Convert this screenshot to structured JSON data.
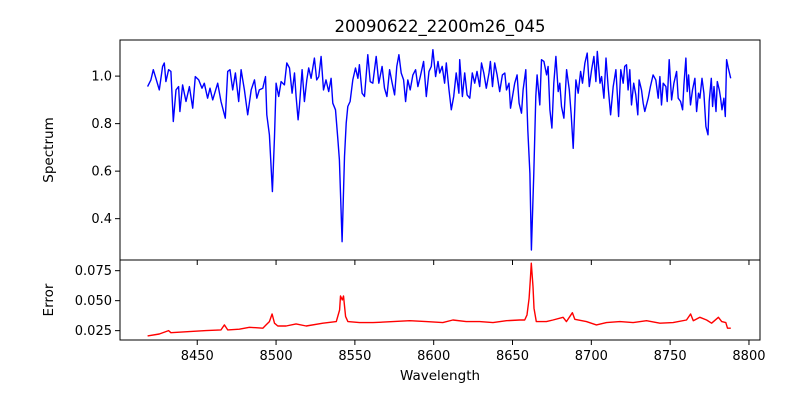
{
  "chart_data": [
    {
      "type": "line",
      "title": "20090622_2200m26_045",
      "xlabel": "",
      "ylabel": "Spectrum",
      "xlim": [
        8401,
        8807
      ],
      "ylim": [
        0.226,
        1.152
      ],
      "xticks": [
        8450,
        8500,
        8550,
        8600,
        8650,
        8700,
        8750,
        8800
      ],
      "yticks": [
        0.4,
        0.6,
        0.8,
        1.0
      ],
      "ytick_labels": [
        "0.4",
        "0.6",
        "0.8",
        "1.0"
      ],
      "grid": false,
      "series": [
        {
          "name": "Spectrum",
          "color": "#0000ff",
          "x": [
            8418.5,
            8420.6,
            8422.1,
            8423.8,
            8425.9,
            8428.0,
            8429.1,
            8430.1,
            8431.8,
            8433.3,
            8434.8,
            8436.5,
            8438.2,
            8439.0,
            8440.7,
            8442.9,
            8445.0,
            8447.1,
            8448.8,
            8450.9,
            8453.0,
            8454.5,
            8456.6,
            8458.1,
            8459.8,
            8463.0,
            8465.1,
            8467.8,
            8469.3,
            8470.8,
            8472.5,
            8474.2,
            8476.3,
            8477.8,
            8479.9,
            8482.0,
            8484.2,
            8486.3,
            8487.8,
            8489.4,
            8491.6,
            8493.3,
            8494.1,
            8495.8,
            8497.7,
            8499.0,
            8500.0,
            8501.7,
            8503.2,
            8505.3,
            8506.8,
            8508.5,
            8510.2,
            8511.7,
            8512.7,
            8514.0,
            8514.8,
            8516.5,
            8518.0,
            8519.5,
            8520.7,
            8522.2,
            8524.3,
            8525.8,
            8527.1,
            8528.6,
            8530.1,
            8531.7,
            8533.4,
            8534.9,
            8536.0,
            8537.7,
            8539.2,
            8540.2,
            8541.9,
            8543.4,
            8544.5,
            8545.5,
            8547.0,
            8548.7,
            8550.4,
            8551.9,
            8552.9,
            8554.6,
            8556.1,
            8558.2,
            8559.7,
            8561.4,
            8563.5,
            8565.2,
            8567.3,
            8568.8,
            8570.3,
            8572.0,
            8573.7,
            8575.2,
            8576.6,
            8577.9,
            8579.4,
            8580.9,
            8582.2,
            8583.6,
            8585.1,
            8586.8,
            8588.5,
            8590.0,
            8591.5,
            8593.6,
            8595.3,
            8597.0,
            8598.5,
            8599.5,
            8601.2,
            8602.7,
            8603.8,
            8605.4,
            8606.9,
            8608.0,
            8609.7,
            8611.2,
            8612.7,
            8614.3,
            8616.0,
            8616.5,
            8618.2,
            8619.7,
            8621.2,
            8622.9,
            8624.5,
            8626.0,
            8627.5,
            8629.2,
            8630.3,
            8631.8,
            8633.4,
            8635.1,
            8636.0,
            8637.3,
            8638.7,
            8640.2,
            8641.9,
            8643.6,
            8645.1,
            8646.2,
            8647.8,
            8648.7,
            8650.0,
            8651.4,
            8652.9,
            8654.2,
            8655.7,
            8656.7,
            8658.4,
            8659.7,
            8661.0,
            8662.0,
            8663.5,
            8664.8,
            8665.6,
            8667.3,
            8668.4,
            8669.9,
            8671.6,
            8672.6,
            8673.7,
            8675.0,
            8676.2,
            8677.5,
            8679.0,
            8680.0,
            8681.1,
            8682.6,
            8684.3,
            8686.0,
            8687.2,
            8688.5,
            8690.2,
            8691.7,
            8693.2,
            8694.4,
            8695.9,
            8697.4,
            8698.7,
            8700.2,
            8701.6,
            8702.9,
            8703.8,
            8705.5,
            8706.5,
            8708.0,
            8709.3,
            8710.8,
            8712.2,
            8713.9,
            8715.6,
            8717.3,
            8718.7,
            8720.2,
            8721.2,
            8722.3,
            8723.3,
            8724.4,
            8725.5,
            8726.9,
            8728.2,
            8729.5,
            8730.3,
            8731.8,
            8732.9,
            8733.9,
            8736.1,
            8737.5,
            8739.2,
            8740.9,
            8742.4,
            8743.5,
            8744.5,
            8745.6,
            8747.3,
            8748.1,
            8749.4,
            8750.9,
            8752.4,
            8754.1,
            8755.1,
            8756.6,
            8757.9,
            8758.7,
            8760.0,
            8760.8,
            8761.7,
            8762.9,
            8764.2,
            8765.7,
            8766.8,
            8768.0,
            8768.9,
            8770.2,
            8771.4,
            8772.7,
            8774.0,
            8774.8,
            8776.1,
            8776.9,
            8777.8,
            8779.1,
            8779.9,
            8781.2,
            8782.0,
            8782.9,
            8784.1,
            8785.0,
            8785.8,
            8786.9,
            8788.4
          ],
          "y": [
            0.956,
            0.984,
            1.027,
            0.991,
            0.942,
            1.041,
            1.055,
            0.977,
            1.027,
            1.02,
            0.809,
            0.942,
            0.956,
            0.851,
            0.963,
            0.893,
            0.956,
            0.865,
            0.998,
            0.984,
            0.949,
            0.97,
            0.907,
            0.949,
            0.9,
            0.97,
            0.893,
            0.823,
            1.02,
            1.027,
            0.942,
            1.013,
            0.893,
            1.027,
            0.942,
            0.837,
            0.942,
            0.984,
            0.907,
            0.942,
            0.949,
            0.998,
            0.837,
            0.753,
            0.514,
            0.746,
            0.97,
            0.914,
            0.977,
            0.963,
            1.055,
            1.034,
            0.928,
            1.013,
            0.914,
            0.816,
            0.872,
            1.027,
            0.893,
            0.984,
            1.034,
            0.991,
            1.076,
            0.984,
            0.998,
            1.083,
            0.942,
            0.984,
            0.935,
            0.991,
            0.886,
            0.858,
            0.732,
            0.647,
            0.303,
            0.661,
            0.802,
            0.872,
            0.893,
            0.984,
            1.034,
            0.991,
            1.048,
            0.928,
            0.914,
            1.09,
            0.977,
            0.97,
            1.083,
            0.97,
            1.041,
            0.949,
            0.914,
            1.027,
            0.97,
            0.921,
            1.041,
            1.09,
            1.013,
            0.984,
            0.893,
            0.984,
            0.942,
            1.005,
            1.027,
            0.956,
            0.998,
            1.062,
            0.914,
            1.02,
            1.041,
            1.111,
            0.998,
            1.062,
            1.013,
            1.041,
            0.97,
            1.055,
            0.942,
            0.858,
            0.914,
            1.013,
            0.928,
            1.069,
            0.914,
            1.013,
            0.921,
            0.907,
            1.013,
            0.97,
            1.02,
            0.956,
            1.055,
            1.013,
            0.949,
            1.013,
            1.062,
            0.956,
            1.055,
            1.005,
            0.935,
            1.005,
            1.013,
            0.942,
            0.97,
            0.865,
            0.914,
            0.97,
            1.005,
            0.886,
            0.844,
            0.942,
            1.027,
            0.774,
            0.591,
            0.268,
            0.591,
            0.914,
            1.005,
            0.879,
            1.069,
            1.062,
            1.005,
            1.041,
            0.858,
            0.781,
            0.97,
            1.083,
            0.935,
            0.97,
            0.872,
            0.823,
            1.027,
            0.942,
            0.837,
            0.696,
            0.984,
            0.928,
            1.02,
            0.97,
            1.055,
            1.097,
            0.956,
            1.027,
            1.083,
            0.977,
            1.104,
            0.97,
            0.998,
            0.907,
            1.076,
            0.942,
            0.837,
            0.956,
            1.027,
            0.83,
            1.027,
            0.97,
            1.041,
            1.048,
            0.942,
            1.027,
            0.879,
            0.97,
            0.921,
            0.837,
            0.984,
            0.942,
            0.886,
            0.851,
            0.907,
            0.956,
            1.005,
            0.984,
            0.907,
            0.998,
            0.879,
            0.97,
            0.956,
            0.893,
            1.069,
            0.9,
            0.97,
            1.02,
            0.907,
            0.893,
            0.858,
            0.963,
            1.076,
            0.935,
            1.005,
            0.879,
            0.942,
            0.991,
            0.851,
            0.928,
            0.907,
            0.991,
            0.928,
            0.788,
            0.753,
            0.893,
            0.991,
            0.872,
            0.956,
            0.851,
            0.977,
            0.942,
            0.907,
            0.858,
            0.907,
            0.83,
            1.069,
            1.034,
            0.991
          ]
        }
      ]
    },
    {
      "type": "line",
      "xlabel": "Wavelength",
      "ylabel": "Error",
      "xlim": [
        8401,
        8807
      ],
      "ylim": [
        0.0172,
        0.0839
      ],
      "xticks": [
        8450,
        8500,
        8550,
        8600,
        8650,
        8700,
        8750,
        8800
      ],
      "xtick_labels": [
        "8450",
        "8500",
        "8550",
        "8600",
        "8650",
        "8700",
        "8750",
        "8800"
      ],
      "yticks": [
        0.025,
        0.05,
        0.075
      ],
      "ytick_labels": [
        "0.025",
        "0.050",
        "0.075"
      ],
      "grid": false,
      "series": [
        {
          "name": "Error",
          "color": "#ff0000",
          "x": [
            8418.5,
            8425.9,
            8431.8,
            8433.3,
            8445.0,
            8455.6,
            8465.1,
            8467.2,
            8469.3,
            8476.7,
            8483.1,
            8491.6,
            8493.7,
            8495.8,
            8497.5,
            8499.0,
            8501.1,
            8506.4,
            8512.7,
            8519.1,
            8529.7,
            8538.2,
            8540.3,
            8540.9,
            8542.0,
            8542.8,
            8544.1,
            8545.6,
            8553.0,
            8561.5,
            8574.2,
            8584.8,
            8595.3,
            8605.8,
            8612.2,
            8620.6,
            8629.1,
            8637.6,
            8646.1,
            8654.5,
            8657.7,
            8659.2,
            8660.5,
            8661.3,
            8661.9,
            8663.0,
            8663.6,
            8665.1,
            8671.5,
            8675.7,
            8682.1,
            8684.2,
            8688.0,
            8689.5,
            8696.9,
            8703.2,
            8709.6,
            8718.1,
            8726.5,
            8735.0,
            8743.5,
            8751.9,
            8760.4,
            8763.0,
            8764.7,
            8768.9,
            8773.1,
            8776.3,
            8780.6,
            8782.7,
            8785.3,
            8786.4,
            8788.5
          ],
          "y": [
            0.0206,
            0.0222,
            0.025,
            0.0233,
            0.0242,
            0.025,
            0.0256,
            0.0298,
            0.0256,
            0.0262,
            0.0278,
            0.027,
            0.0298,
            0.0325,
            0.0389,
            0.0312,
            0.0289,
            0.0289,
            0.0306,
            0.0289,
            0.0312,
            0.0325,
            0.0422,
            0.0539,
            0.0506,
            0.0539,
            0.0367,
            0.0325,
            0.0317,
            0.0317,
            0.0325,
            0.0333,
            0.0325,
            0.0317,
            0.0339,
            0.0325,
            0.0325,
            0.0317,
            0.0333,
            0.0339,
            0.0339,
            0.0381,
            0.052,
            0.0672,
            0.0812,
            0.0617,
            0.0437,
            0.0325,
            0.0325,
            0.0339,
            0.0361,
            0.0325,
            0.04,
            0.0345,
            0.0325,
            0.0298,
            0.0317,
            0.0325,
            0.0317,
            0.0333,
            0.0312,
            0.0317,
            0.0339,
            0.0389,
            0.0333,
            0.0361,
            0.0339,
            0.0312,
            0.0361,
            0.0325,
            0.0317,
            0.027,
            0.027
          ]
        }
      ]
    }
  ]
}
